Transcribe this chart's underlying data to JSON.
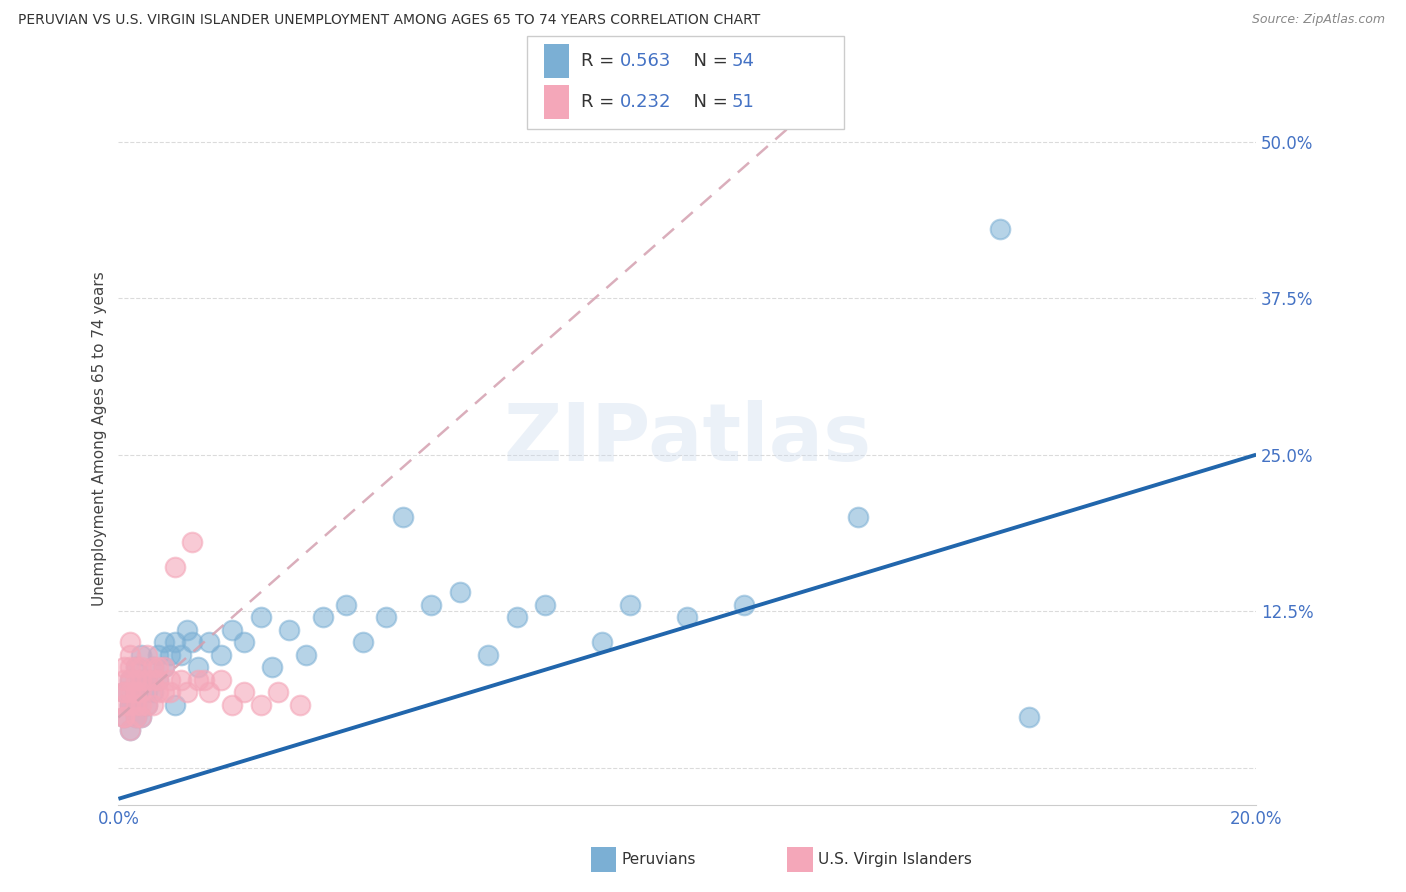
{
  "title": "PERUVIAN VS U.S. VIRGIN ISLANDER UNEMPLOYMENT AMONG AGES 65 TO 74 YEARS CORRELATION CHART",
  "source": "Source: ZipAtlas.com",
  "ylabel": "Unemployment Among Ages 65 to 74 years",
  "xlim": [
    0.0,
    0.2
  ],
  "ylim": [
    -0.03,
    0.555
  ],
  "grid_color": "#cccccc",
  "bg_color": "#ffffff",
  "blue_color": "#7bafd4",
  "pink_color": "#f4a7b9",
  "blue_line_color": "#2166ac",
  "pink_line_color": "#d4a0b0",
  "R_blue": 0.563,
  "N_blue": 54,
  "R_pink": 0.232,
  "N_pink": 51,
  "watermark": "ZIPatlas",
  "legend_label_blue": "Peruvians",
  "legend_label_pink": "U.S. Virgin Islanders",
  "blue_x": [
    0.001,
    0.001,
    0.002,
    0.002,
    0.002,
    0.002,
    0.003,
    0.003,
    0.003,
    0.003,
    0.004,
    0.004,
    0.004,
    0.005,
    0.005,
    0.005,
    0.006,
    0.006,
    0.007,
    0.007,
    0.008,
    0.008,
    0.009,
    0.01,
    0.01,
    0.011,
    0.012,
    0.013,
    0.014,
    0.016,
    0.018,
    0.02,
    0.022,
    0.025,
    0.027,
    0.03,
    0.033,
    0.036,
    0.04,
    0.043,
    0.047,
    0.05,
    0.055,
    0.06,
    0.065,
    0.07,
    0.075,
    0.085,
    0.09,
    0.1,
    0.11,
    0.13,
    0.155,
    0.16
  ],
  "blue_y": [
    0.04,
    0.06,
    0.03,
    0.05,
    0.07,
    0.05,
    0.04,
    0.06,
    0.08,
    0.05,
    0.04,
    0.07,
    0.09,
    0.05,
    0.07,
    0.06,
    0.08,
    0.06,
    0.07,
    0.09,
    0.08,
    0.1,
    0.09,
    0.05,
    0.1,
    0.09,
    0.11,
    0.1,
    0.08,
    0.1,
    0.09,
    0.11,
    0.1,
    0.12,
    0.08,
    0.11,
    0.09,
    0.12,
    0.13,
    0.1,
    0.12,
    0.2,
    0.13,
    0.14,
    0.09,
    0.12,
    0.13,
    0.1,
    0.13,
    0.12,
    0.13,
    0.2,
    0.43,
    0.04
  ],
  "pink_x": [
    0.001,
    0.001,
    0.001,
    0.001,
    0.001,
    0.001,
    0.001,
    0.002,
    0.002,
    0.002,
    0.002,
    0.002,
    0.002,
    0.002,
    0.003,
    0.003,
    0.003,
    0.003,
    0.003,
    0.003,
    0.004,
    0.004,
    0.004,
    0.004,
    0.004,
    0.005,
    0.005,
    0.005,
    0.006,
    0.006,
    0.006,
    0.007,
    0.007,
    0.007,
    0.008,
    0.008,
    0.009,
    0.009,
    0.01,
    0.011,
    0.012,
    0.013,
    0.014,
    0.015,
    0.016,
    0.018,
    0.02,
    0.022,
    0.025,
    0.028,
    0.032
  ],
  "pink_y": [
    0.04,
    0.05,
    0.06,
    0.07,
    0.08,
    0.04,
    0.06,
    0.03,
    0.05,
    0.06,
    0.07,
    0.08,
    0.09,
    0.1,
    0.04,
    0.05,
    0.06,
    0.07,
    0.08,
    0.06,
    0.04,
    0.05,
    0.07,
    0.08,
    0.06,
    0.05,
    0.07,
    0.09,
    0.05,
    0.07,
    0.08,
    0.06,
    0.08,
    0.07,
    0.06,
    0.08,
    0.07,
    0.06,
    0.16,
    0.07,
    0.06,
    0.18,
    0.07,
    0.07,
    0.06,
    0.07,
    0.05,
    0.06,
    0.05,
    0.06,
    0.05
  ],
  "blue_line": {
    "x0": 0.0,
    "y0": -0.025,
    "x1": 0.2,
    "y1": 0.25
  },
  "pink_line": {
    "x0": 0.0,
    "y0": 0.04,
    "x1": 0.12,
    "y1": 0.52
  }
}
